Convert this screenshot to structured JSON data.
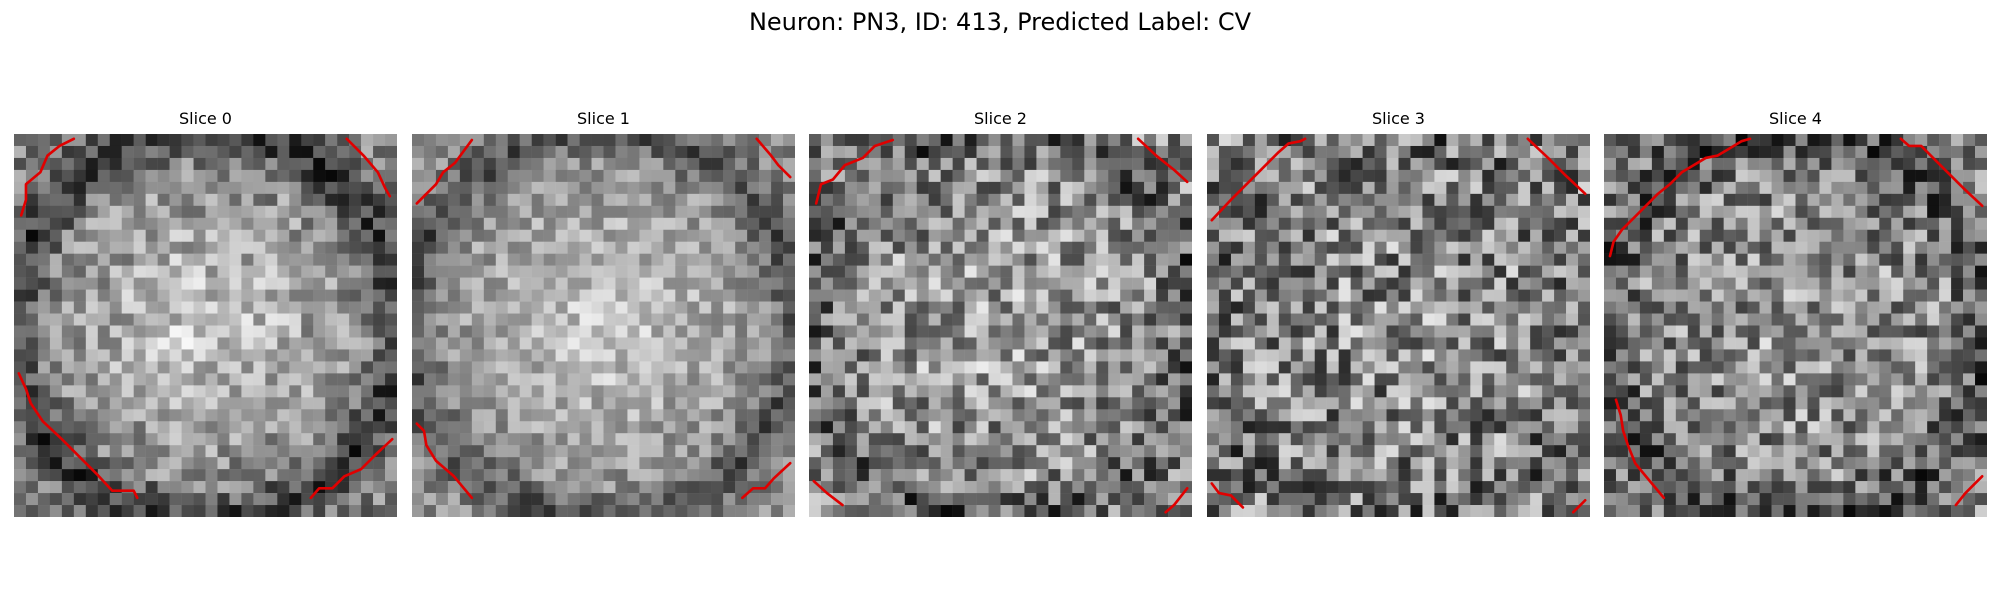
{
  "figure": {
    "title": "Neuron: PN3, ID: 413, Predicted Label: CV"
  },
  "slices": [
    {
      "label": "Slice 0"
    },
    {
      "label": "Slice 1"
    },
    {
      "label": "Slice 2"
    },
    {
      "label": "Slice 3"
    },
    {
      "label": "Slice 4"
    }
  ],
  "style": {
    "contour_color": "#e00000",
    "colormap": "grayscale",
    "background": "#ffffff"
  }
}
